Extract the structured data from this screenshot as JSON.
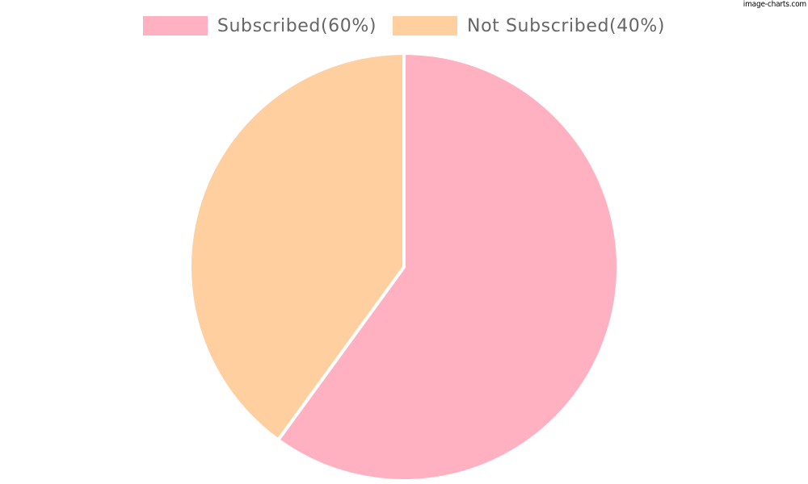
{
  "watermark": "image-charts.com",
  "chart_data": {
    "type": "pie",
    "labels": [
      "Subscribed(60%)",
      "Not Subscribed(40%)"
    ],
    "values": [
      60,
      40
    ],
    "colors": [
      "#FFB1C1",
      "#FFCFA0"
    ],
    "legend": "top"
  }
}
